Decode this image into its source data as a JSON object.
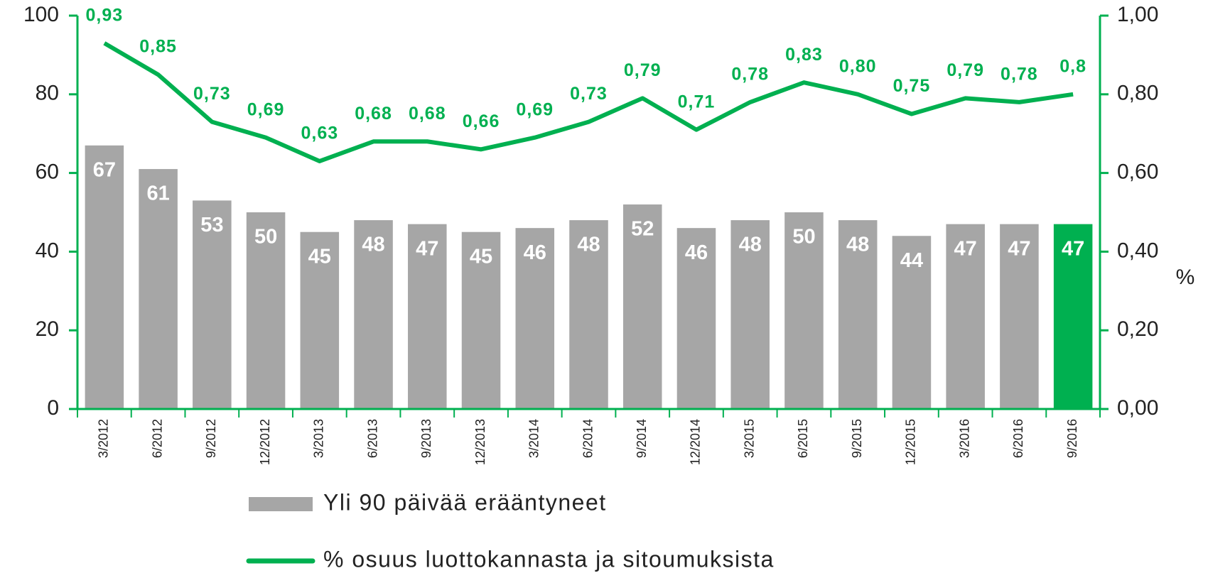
{
  "chart_data": {
    "type": "bar_line",
    "categories": [
      "3/2012",
      "6/2012",
      "9/2012",
      "12/2012",
      "3/2013",
      "6/2013",
      "9/2013",
      "12/2013",
      "3/2014",
      "6/2014",
      "9/2014",
      "12/2014",
      "3/2015",
      "6/2015",
      "9/2015",
      "12/2015",
      "3/2016",
      "6/2016",
      "9/2016"
    ],
    "series": [
      {
        "name": "Yli 90 päivää erääntyneet",
        "type": "bar",
        "color": "#a6a6a6",
        "colors": [
          "#a6a6a6",
          "#a6a6a6",
          "#a6a6a6",
          "#a6a6a6",
          "#a6a6a6",
          "#a6a6a6",
          "#a6a6a6",
          "#a6a6a6",
          "#a6a6a6",
          "#a6a6a6",
          "#a6a6a6",
          "#a6a6a6",
          "#a6a6a6",
          "#a6a6a6",
          "#a6a6a6",
          "#a6a6a6",
          "#a6a6a6",
          "#a6a6a6",
          "#00b050"
        ],
        "values": [
          67,
          61,
          53,
          50,
          45,
          48,
          47,
          45,
          46,
          48,
          52,
          46,
          48,
          50,
          48,
          44,
          47,
          47,
          47
        ]
      },
      {
        "name": "% osuus luottokannasta ja sitoumuksista",
        "type": "line",
        "color": "#00b050",
        "axis": "y2",
        "values": [
          0.93,
          0.85,
          0.73,
          0.69,
          0.63,
          0.68,
          0.68,
          0.66,
          0.69,
          0.73,
          0.79,
          0.71,
          0.78,
          0.83,
          0.8,
          0.75,
          0.79,
          0.78,
          0.8
        ],
        "value_labels": [
          "0,93",
          "0,85",
          "0,73",
          "0,69",
          "0,63",
          "0,68",
          "0,68",
          "0,66",
          "0,69",
          "0,73",
          "0,79",
          "0,71",
          "0,78",
          "0,83",
          "0,80",
          "0,75",
          "0,79",
          "0,78",
          "0,8"
        ]
      }
    ],
    "ylim": [
      0,
      100
    ],
    "yticks": [
      0,
      20,
      40,
      60,
      80,
      100
    ],
    "y2lim": [
      0,
      1
    ],
    "y2label": "%",
    "y2ticks": [
      {
        "value": 0,
        "label": "0,00"
      },
      {
        "value": 0.2,
        "label": "0,20"
      },
      {
        "value": 0.4,
        "label": "0,40"
      },
      {
        "value": 0.6,
        "label": "0,60"
      },
      {
        "value": 0.8,
        "label": "0,80"
      },
      {
        "value": 1,
        "label": "1,00"
      }
    ]
  }
}
